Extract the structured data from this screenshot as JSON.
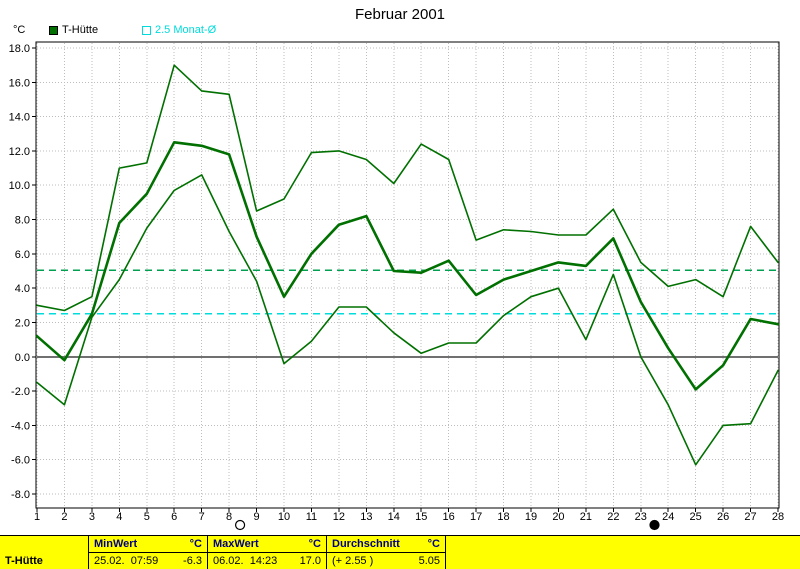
{
  "title": "Februar 2001",
  "axis_unit": "°C",
  "legend": {
    "series_label": "T-Hütte",
    "avg_label": "2.5 Monat-Ø"
  },
  "colors": {
    "series_green": "#007000",
    "avg_green_dashed": "#00a050",
    "monthly_avg_cyan": "#00dcdc",
    "zero_line_gray": "#707070",
    "grid_gray": "#bdbdbd",
    "statusbar_yellow": "#ffff00",
    "statusbar_header_navy": "#000080"
  },
  "chart_data": {
    "type": "line",
    "title": "Februar 2001",
    "xlabel": "",
    "ylabel": "°C",
    "ylim": [
      -8.0,
      18.0
    ],
    "ytick_step": 2.0,
    "grid": true,
    "x": [
      1,
      2,
      3,
      4,
      5,
      6,
      7,
      8,
      9,
      10,
      11,
      12,
      13,
      14,
      15,
      16,
      17,
      18,
      19,
      20,
      21,
      22,
      23,
      24,
      25,
      26,
      27,
      28
    ],
    "series": [
      {
        "name": "tagesmaximum",
        "values": [
          3.0,
          2.7,
          3.5,
          11.0,
          11.3,
          17.0,
          15.5,
          15.3,
          8.5,
          9.2,
          11.9,
          12.0,
          11.5,
          10.1,
          12.4,
          11.5,
          6.8,
          7.4,
          7.3,
          7.1,
          7.1,
          8.6,
          5.5,
          4.1,
          4.5,
          3.5,
          7.6,
          5.5
        ]
      },
      {
        "name": "tagesmittel",
        "values": [
          1.2,
          -0.2,
          2.5,
          7.8,
          9.5,
          12.5,
          12.3,
          11.8,
          7.0,
          3.5,
          6.0,
          7.7,
          8.2,
          5.0,
          4.9,
          5.6,
          3.6,
          4.5,
          5.0,
          5.5,
          5.3,
          6.9,
          3.2,
          0.5,
          -1.9,
          -0.5,
          2.2,
          1.9
        ]
      },
      {
        "name": "tagesminimum",
        "values": [
          -1.5,
          -2.8,
          2.3,
          4.5,
          7.5,
          9.7,
          10.6,
          7.3,
          4.4,
          -0.4,
          0.9,
          2.9,
          2.9,
          1.4,
          0.2,
          0.8,
          0.8,
          2.4,
          3.5,
          4.0,
          1.0,
          4.8,
          0.0,
          -2.8,
          -6.3,
          -4.0,
          -3.9,
          -0.8
        ]
      }
    ],
    "reference_lines": [
      {
        "name": "durchschnitt",
        "value": 5.05,
        "style": "dashed",
        "color": "#00a050"
      },
      {
        "name": "monats-mittel",
        "value": 2.5,
        "style": "dashed",
        "color": "#00dcdc"
      }
    ],
    "zero_line": 0.0,
    "legend_position": "top-left"
  },
  "moon_phases": [
    {
      "day": 8.4,
      "phase": "full-moon"
    },
    {
      "day": 23.5,
      "phase": "new-moon"
    }
  ],
  "statusbar": {
    "row_label": "T-Hütte",
    "cells": [
      {
        "header": "MinWert",
        "unit": "°C",
        "when": "25.02.  07:59",
        "value": "-6.3"
      },
      {
        "header": "MaxWert",
        "unit": "°C",
        "when": "06.02.  14:23",
        "value": "17.0"
      },
      {
        "header": "Durchschnitt",
        "unit": "°C",
        "when": "(+ 2.55 )",
        "value": "5.05"
      }
    ]
  }
}
